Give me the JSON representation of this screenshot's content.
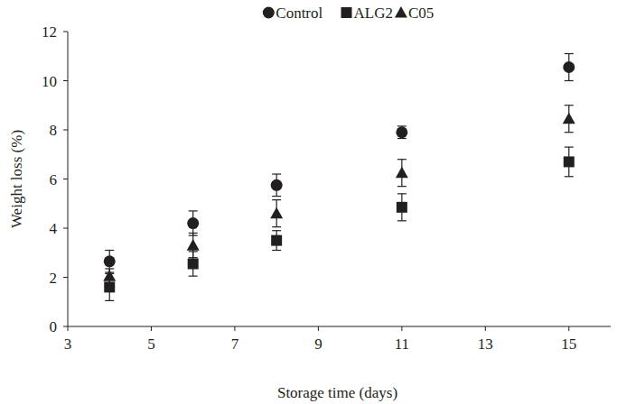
{
  "chart_data": {
    "type": "scatter",
    "x_label": "Storage time (days)",
    "y_label": "Weight loss (%)",
    "x": [
      4,
      6,
      8,
      11,
      15
    ],
    "series": [
      {
        "name": "Control",
        "color": "#231f20",
        "marker": "circle",
        "values": [
          2.65,
          4.2,
          5.75,
          7.9,
          10.55
        ],
        "errors": [
          0.45,
          0.5,
          0.45,
          0.25,
          0.55
        ]
      },
      {
        "name": "ALG2",
        "color": "#231f20",
        "marker": "square",
        "values": [
          1.6,
          2.55,
          3.5,
          4.85,
          6.7
        ],
        "errors": [
          0.55,
          0.5,
          0.4,
          0.55,
          0.6
        ]
      },
      {
        "name": "C05",
        "color": "#231f20",
        "marker": "triangle",
        "values": [
          2.05,
          3.3,
          4.6,
          6.25,
          8.45
        ],
        "errors": [
          0.3,
          0.5,
          0.55,
          0.55,
          0.55
        ]
      }
    ],
    "xlim": [
      3,
      16
    ],
    "xticks": [
      3,
      5,
      7,
      9,
      11,
      13,
      15
    ],
    "ylim": [
      0,
      12
    ],
    "yticks": [
      0,
      2,
      4,
      6,
      8,
      10,
      12
    ],
    "grid": false,
    "legend": "top"
  }
}
